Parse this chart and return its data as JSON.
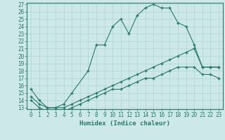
{
  "title": "",
  "xlabel": "Humidex (Indice chaleur)",
  "background_color": "#cce8e8",
  "line_color": "#2a7a6a",
  "grid_color": "#b0d4d4",
  "x_upper": [
    0,
    1,
    2,
    3,
    4,
    5,
    7,
    8,
    9,
    10,
    11,
    12,
    13,
    14,
    15,
    16,
    17,
    18,
    19,
    20,
    21,
    22,
    23
  ],
  "y_upper": [
    15.5,
    14.0,
    13.0,
    13.0,
    13.5,
    15.0,
    18.0,
    21.5,
    21.5,
    24.0,
    25.0,
    23.0,
    25.5,
    26.5,
    27.0,
    26.5,
    26.5,
    24.5,
    24.0,
    21.5,
    18.5,
    18.5,
    18.5
  ],
  "x_mid": [
    0,
    1,
    2,
    3,
    4,
    5,
    6,
    7,
    8,
    9,
    10,
    11,
    12,
    13,
    14,
    15,
    16,
    17,
    18,
    19,
    20,
    21,
    22,
    23
  ],
  "y_mid": [
    14.5,
    13.5,
    13.0,
    13.0,
    13.0,
    13.5,
    14.0,
    14.5,
    15.0,
    15.5,
    16.0,
    16.5,
    17.0,
    17.5,
    18.0,
    18.5,
    19.0,
    19.5,
    20.0,
    20.5,
    21.0,
    18.5,
    18.5,
    18.5
  ],
  "x_lower": [
    0,
    1,
    2,
    3,
    4,
    5,
    6,
    7,
    8,
    9,
    10,
    11,
    12,
    13,
    14,
    15,
    16,
    17,
    18,
    19,
    20,
    21,
    22,
    23
  ],
  "y_lower": [
    14.0,
    13.0,
    12.5,
    12.5,
    12.5,
    13.0,
    13.5,
    14.0,
    14.5,
    15.0,
    15.5,
    15.5,
    16.0,
    16.5,
    17.0,
    17.0,
    17.5,
    18.0,
    18.5,
    18.5,
    18.5,
    17.5,
    17.5,
    17.0
  ],
  "ylim": [
    13,
    27
  ],
  "xlim": [
    -0.5,
    23.5
  ],
  "yticks": [
    13,
    14,
    15,
    16,
    17,
    18,
    19,
    20,
    21,
    22,
    23,
    24,
    25,
    26,
    27
  ],
  "xticks": [
    0,
    1,
    2,
    3,
    4,
    5,
    6,
    7,
    8,
    9,
    10,
    11,
    12,
    13,
    14,
    15,
    16,
    17,
    18,
    19,
    20,
    21,
    22,
    23
  ],
  "tick_fontsize": 5.5,
  "label_fontsize": 6.5
}
